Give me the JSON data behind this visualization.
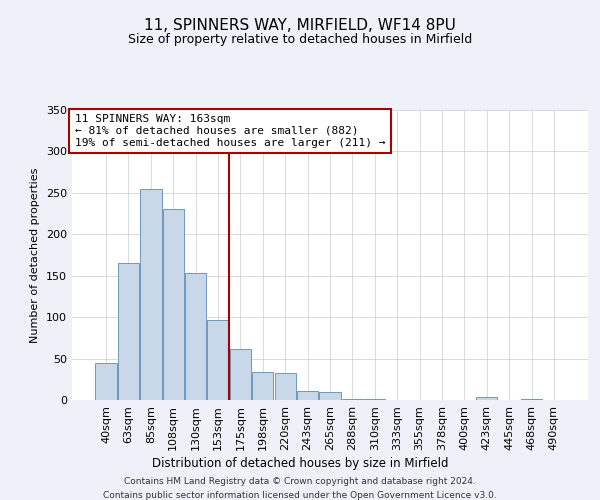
{
  "title": "11, SPINNERS WAY, MIRFIELD, WF14 8PU",
  "subtitle": "Size of property relative to detached houses in Mirfield",
  "xlabel": "Distribution of detached houses by size in Mirfield",
  "ylabel": "Number of detached properties",
  "bar_labels": [
    "40sqm",
    "63sqm",
    "85sqm",
    "108sqm",
    "130sqm",
    "153sqm",
    "175sqm",
    "198sqm",
    "220sqm",
    "243sqm",
    "265sqm",
    "288sqm",
    "310sqm",
    "333sqm",
    "355sqm",
    "378sqm",
    "400sqm",
    "423sqm",
    "445sqm",
    "468sqm",
    "490sqm"
  ],
  "bar_values": [
    45,
    165,
    255,
    230,
    153,
    97,
    62,
    34,
    33,
    11,
    10,
    1,
    1,
    0,
    0,
    0,
    0,
    4,
    0,
    1,
    0
  ],
  "bar_color": "#c8d8e8",
  "bar_edge_color": "#7098b8",
  "vline_x": 5.5,
  "vline_color": "#aa0000",
  "annotation_lines": [
    "11 SPINNERS WAY: 163sqm",
    "← 81% of detached houses are smaller (882)",
    "19% of semi-detached houses are larger (211) →"
  ],
  "annotation_box_color": "#aa0000",
  "ylim": [
    0,
    350
  ],
  "yticks": [
    0,
    50,
    100,
    150,
    200,
    250,
    300,
    350
  ],
  "footer_line1": "Contains HM Land Registry data © Crown copyright and database right 2024.",
  "footer_line2": "Contains public sector information licensed under the Open Government Licence v3.0.",
  "bg_color": "#eef2f8",
  "plot_bg_color": "#ffffff"
}
